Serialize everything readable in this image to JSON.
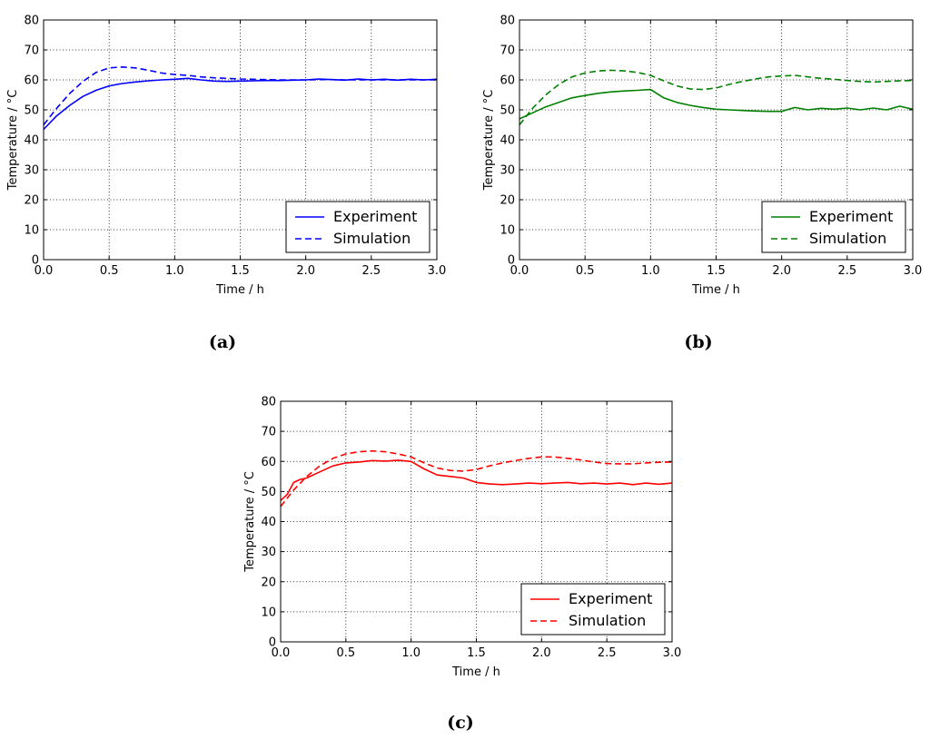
{
  "chart_data": [
    {
      "type": "line",
      "panel": "(a)",
      "caption": "(a)",
      "color": "#0000ff",
      "xlabel": "Time / h",
      "ylabel": "Temperature / °C",
      "xlim": [
        0,
        3
      ],
      "ylim": [
        0,
        80
      ],
      "xticks": [
        "0.0",
        "0.5",
        "1.0",
        "1.5",
        "2.0",
        "2.5",
        "3.0"
      ],
      "yticks": [
        "0",
        "10",
        "20",
        "30",
        "40",
        "50",
        "60",
        "70",
        "80"
      ],
      "grid": true,
      "legend_position": "lower-right",
      "series": [
        {
          "name": "Experiment",
          "style": "solid",
          "x": [
            0,
            0.1,
            0.2,
            0.3,
            0.4,
            0.5,
            0.6,
            0.7,
            0.8,
            0.9,
            1.0,
            1.1,
            1.2,
            1.3,
            1.4,
            1.5,
            1.6,
            1.7,
            1.8,
            1.9,
            2.0,
            2.1,
            2.2,
            2.3,
            2.4,
            2.5,
            2.6,
            2.7,
            2.8,
            2.9,
            3.0
          ],
          "y": [
            43.5,
            48,
            51.5,
            54.5,
            56.5,
            58,
            58.8,
            59.3,
            59.7,
            60,
            60.2,
            60.5,
            60,
            59.6,
            59.5,
            59.6,
            59.7,
            59.8,
            59.8,
            59.9,
            60,
            60.3,
            60.1,
            59.9,
            60.3,
            60,
            60.2,
            59.9,
            60.2,
            60,
            60.2
          ]
        },
        {
          "name": "Simulation",
          "style": "dashed",
          "x": [
            0,
            0.1,
            0.2,
            0.3,
            0.4,
            0.5,
            0.6,
            0.7,
            0.8,
            0.9,
            1.0,
            1.1,
            1.2,
            1.3,
            1.4,
            1.5,
            1.6,
            1.7,
            1.8,
            1.9,
            2.0,
            2.1,
            2.2,
            2.3,
            2.4,
            2.5,
            2.6,
            2.7,
            2.8,
            2.9,
            3.0
          ],
          "y": [
            45,
            50.5,
            55.5,
            59.5,
            62.5,
            64,
            64.3,
            64,
            63.2,
            62.3,
            61.8,
            61.5,
            61,
            60.7,
            60.5,
            60.3,
            60.2,
            60.1,
            60,
            60,
            60,
            60.1,
            60.1,
            60,
            60,
            60,
            60,
            60,
            60,
            60,
            60
          ]
        }
      ]
    },
    {
      "type": "line",
      "panel": "(b)",
      "caption": "(b)",
      "color": "#008000",
      "xlabel": "Time / h",
      "ylabel": "Temperature / °C",
      "xlim": [
        0,
        3
      ],
      "ylim": [
        0,
        80
      ],
      "xticks": [
        "0.0",
        "0.5",
        "1.0",
        "1.5",
        "2.0",
        "2.5",
        "3.0"
      ],
      "yticks": [
        "0",
        "10",
        "20",
        "30",
        "40",
        "50",
        "60",
        "70",
        "80"
      ],
      "grid": true,
      "legend_position": "lower-right",
      "series": [
        {
          "name": "Experiment",
          "style": "solid",
          "x": [
            0,
            0.1,
            0.2,
            0.3,
            0.4,
            0.5,
            0.6,
            0.7,
            0.8,
            0.9,
            1.0,
            1.1,
            1.2,
            1.3,
            1.4,
            1.5,
            1.6,
            1.7,
            1.8,
            1.9,
            2.0,
            2.1,
            2.2,
            2.3,
            2.4,
            2.5,
            2.6,
            2.7,
            2.8,
            2.9,
            3.0
          ],
          "y": [
            47,
            49,
            51,
            52.5,
            54,
            54.8,
            55.5,
            56,
            56.3,
            56.5,
            56.8,
            54,
            52.5,
            51.5,
            50.8,
            50.2,
            50,
            49.8,
            49.6,
            49.5,
            49.5,
            50.8,
            50,
            50.5,
            50.2,
            50.6,
            50,
            50.6,
            50,
            51.2,
            50.2
          ]
        },
        {
          "name": "Simulation",
          "style": "dashed",
          "x": [
            0,
            0.1,
            0.2,
            0.3,
            0.4,
            0.5,
            0.6,
            0.7,
            0.8,
            0.9,
            1.0,
            1.1,
            1.2,
            1.3,
            1.4,
            1.5,
            1.6,
            1.7,
            1.8,
            1.9,
            2.0,
            2.1,
            2.2,
            2.3,
            2.4,
            2.5,
            2.6,
            2.7,
            2.8,
            2.9,
            3.0
          ],
          "y": [
            45,
            50.5,
            55,
            58.5,
            61,
            62.3,
            63,
            63.2,
            63,
            62.5,
            61.5,
            59.7,
            58,
            57,
            56.8,
            57.3,
            58.5,
            59.5,
            60.3,
            61,
            61.3,
            61.5,
            61,
            60.5,
            60.2,
            59.8,
            59.5,
            59.3,
            59.5,
            59.7,
            59.8
          ]
        }
      ]
    },
    {
      "type": "line",
      "panel": "(c)",
      "caption": "(c)",
      "color": "#ff0000",
      "xlabel": "Time / h",
      "ylabel": "Temperature / °C",
      "xlim": [
        0,
        3
      ],
      "ylim": [
        0,
        80
      ],
      "xticks": [
        "0.0",
        "0.5",
        "1.0",
        "1.5",
        "2.0",
        "2.5",
        "3.0"
      ],
      "yticks": [
        "0",
        "10",
        "20",
        "30",
        "40",
        "50",
        "60",
        "70",
        "80"
      ],
      "grid": true,
      "legend_position": "lower-right",
      "series": [
        {
          "name": "Experiment",
          "style": "solid",
          "x": [
            0,
            0.05,
            0.1,
            0.15,
            0.2,
            0.3,
            0.4,
            0.5,
            0.6,
            0.7,
            0.8,
            0.9,
            1.0,
            1.1,
            1.2,
            1.3,
            1.4,
            1.5,
            1.6,
            1.7,
            1.8,
            1.9,
            2.0,
            2.1,
            2.2,
            2.3,
            2.4,
            2.5,
            2.6,
            2.7,
            2.8,
            2.9,
            3.0
          ],
          "y": [
            47,
            49,
            53,
            54,
            54.5,
            56.5,
            58.5,
            59.5,
            59.8,
            60.3,
            60.1,
            60.4,
            60,
            57.5,
            55.5,
            55,
            54.5,
            53,
            52.5,
            52.3,
            52.5,
            52.8,
            52.6,
            52.8,
            53,
            52.6,
            52.8,
            52.5,
            52.8,
            52.3,
            52.8,
            52.4,
            52.8
          ]
        },
        {
          "name": "Simulation",
          "style": "dashed",
          "x": [
            0,
            0.1,
            0.2,
            0.3,
            0.4,
            0.5,
            0.6,
            0.7,
            0.8,
            0.9,
            1.0,
            1.1,
            1.2,
            1.3,
            1.4,
            1.5,
            1.6,
            1.7,
            1.8,
            1.9,
            2.0,
            2.1,
            2.2,
            2.3,
            2.4,
            2.5,
            2.6,
            2.7,
            2.8,
            2.9,
            3.0
          ],
          "y": [
            45,
            50.5,
            55,
            58.5,
            61,
            62.5,
            63.2,
            63.5,
            63.2,
            62.5,
            61.5,
            59.5,
            57.8,
            57,
            56.8,
            57.3,
            58.5,
            59.5,
            60.3,
            61,
            61.5,
            61.5,
            61,
            60.5,
            59.8,
            59.3,
            59.2,
            59.2,
            59.5,
            59.7,
            59.8
          ]
        }
      ]
    }
  ],
  "legend": {
    "experiment_label": "Experiment",
    "simulation_label": "Simulation"
  }
}
